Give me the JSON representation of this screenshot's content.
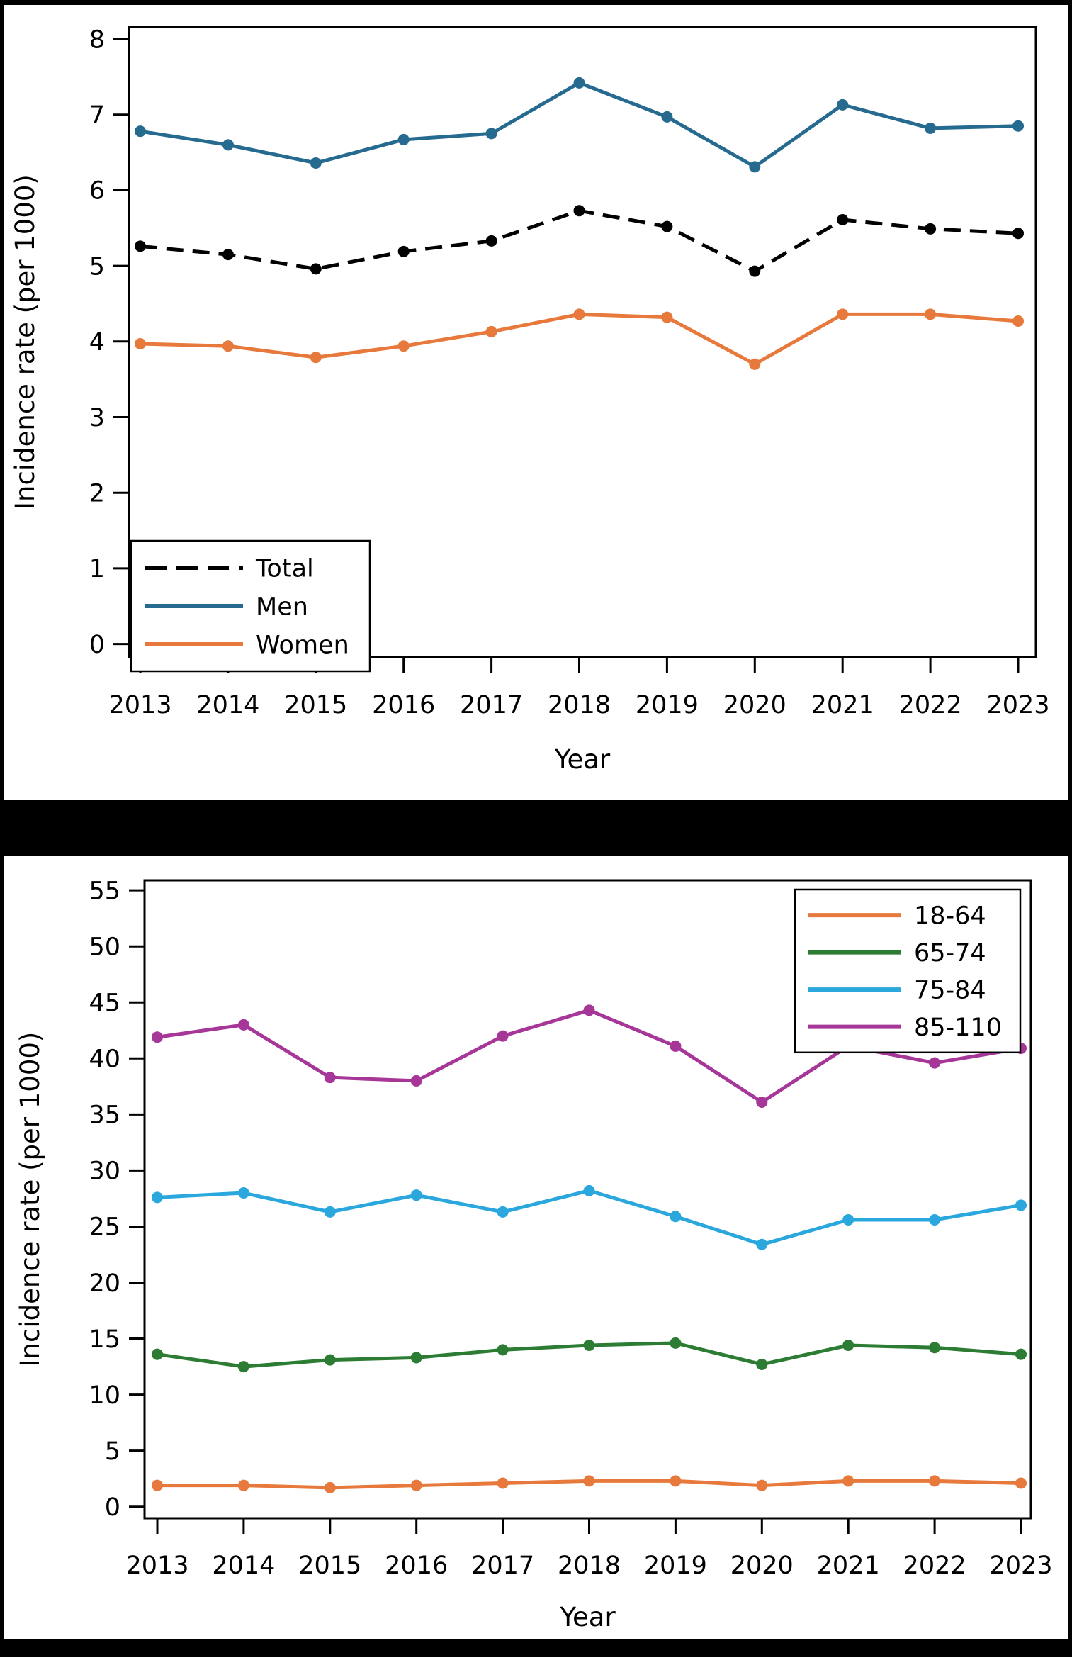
{
  "figure": {
    "background": "#ffffff",
    "frame_color": "#000000",
    "x_axis_label": "Year",
    "y_axis_label": "Incidence rate (per 1000)"
  },
  "chart_data": [
    {
      "name": "incidence-rate-by-sex",
      "type": "line",
      "title": "",
      "xlabel": "Year",
      "ylabel": "Incidence rate (per 1000)",
      "x": [
        2013,
        2014,
        2015,
        2016,
        2017,
        2018,
        2019,
        2020,
        2021,
        2022,
        2023
      ],
      "ylim": [
        0,
        8
      ],
      "ytick_step": 1,
      "grid": false,
      "legend_position": "lower-left",
      "series": [
        {
          "name": "Total",
          "color": "#000000",
          "dash": true,
          "values": [
            5.26,
            5.15,
            4.96,
            5.19,
            5.33,
            5.73,
            5.52,
            4.93,
            5.61,
            5.49,
            5.43
          ]
        },
        {
          "name": "Men",
          "color": "#266b8f",
          "dash": false,
          "values": [
            6.78,
            6.6,
            6.36,
            6.67,
            6.75,
            7.42,
            6.97,
            6.31,
            7.13,
            6.82,
            6.85
          ]
        },
        {
          "name": "Women",
          "color": "#e8793c",
          "dash": false,
          "values": [
            3.97,
            3.94,
            3.79,
            3.94,
            4.13,
            4.36,
            4.32,
            3.7,
            4.36,
            4.36,
            4.27
          ]
        }
      ]
    },
    {
      "name": "incidence-rate-by-age-group",
      "type": "line",
      "title": "",
      "xlabel": "Year",
      "ylabel": "Incidence rate (per 1000)",
      "x": [
        2013,
        2014,
        2015,
        2016,
        2017,
        2018,
        2019,
        2020,
        2021,
        2022,
        2023
      ],
      "ylim": [
        0,
        55
      ],
      "ytick_step": 5,
      "grid": false,
      "legend_position": "upper-right",
      "series": [
        {
          "name": "18-64",
          "color": "#e8793c",
          "dash": false,
          "values": [
            1.9,
            1.9,
            1.7,
            1.9,
            2.1,
            2.3,
            2.3,
            1.9,
            2.3,
            2.3,
            2.1
          ]
        },
        {
          "name": "65-74",
          "color": "#2c7c34",
          "dash": false,
          "values": [
            13.6,
            12.5,
            13.1,
            13.3,
            14.0,
            14.4,
            14.6,
            12.7,
            14.4,
            14.2,
            13.6
          ]
        },
        {
          "name": "75-84",
          "color": "#2aa7dd",
          "dash": false,
          "values": [
            27.6,
            28.0,
            26.3,
            27.8,
            26.3,
            28.2,
            25.9,
            23.4,
            25.6,
            25.6,
            26.9
          ]
        },
        {
          "name": "85-110",
          "color": "#a63799",
          "dash": false,
          "values": [
            41.9,
            43.0,
            38.3,
            38.0,
            42.0,
            44.3,
            41.1,
            36.1,
            41.1,
            39.6,
            40.9
          ]
        }
      ]
    }
  ]
}
